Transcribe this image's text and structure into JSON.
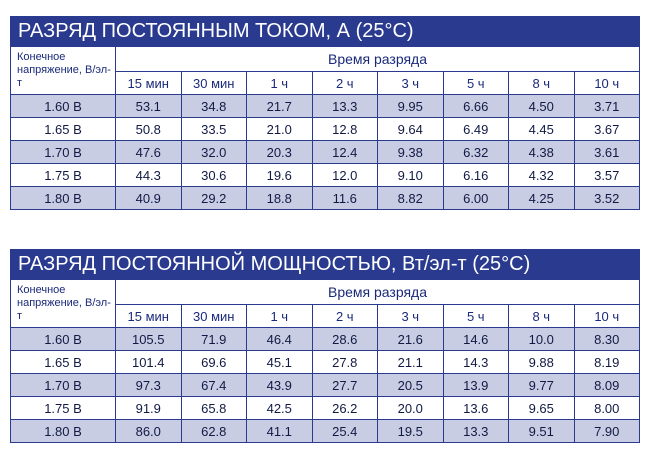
{
  "current_table": {
    "title": "РАЗРЯД ПОСТОЯННЫМ ТОКОМ, А (25°C)",
    "row_header": "Конечное напряжение, В/эл-т",
    "group_header": "Время разряда",
    "columns": [
      "15 мин",
      "30 мин",
      "1 ч",
      "2 ч",
      "3 ч",
      "5 ч",
      "8 ч",
      "10 ч"
    ],
    "rows": [
      {
        "voltage": "1.60 В",
        "values": [
          "53.1",
          "34.8",
          "21.7",
          "13.3",
          "9.95",
          "6.66",
          "4.50",
          "3.71"
        ]
      },
      {
        "voltage": "1.65 В",
        "values": [
          "50.8",
          "33.5",
          "21.0",
          "12.8",
          "9.64",
          "6.49",
          "4.45",
          "3.67"
        ]
      },
      {
        "voltage": "1.70 В",
        "values": [
          "47.6",
          "32.0",
          "20.3",
          "12.4",
          "9.38",
          "6.32",
          "4.38",
          "3.61"
        ]
      },
      {
        "voltage": "1.75 В",
        "values": [
          "44.3",
          "30.6",
          "19.6",
          "12.0",
          "9.10",
          "6.16",
          "4.32",
          "3.57"
        ]
      },
      {
        "voltage": "1.80 В",
        "values": [
          "40.9",
          "29.2",
          "18.8",
          "11.6",
          "8.82",
          "6.00",
          "4.25",
          "3.52"
        ]
      }
    ]
  },
  "power_table": {
    "title": "РАЗРЯД ПОСТОЯННОЙ МОЩНОСТЬЮ, Вт/эл-т (25°C)",
    "row_header": "Конечное напряжение, В/эл-т",
    "group_header": "Время разряда",
    "columns": [
      "15 мин",
      "30 мин",
      "1 ч",
      "2 ч",
      "3 ч",
      "5 ч",
      "8 ч",
      "10 ч"
    ],
    "rows": [
      {
        "voltage": "1.60 В",
        "values": [
          "105.5",
          "71.9",
          "46.4",
          "28.6",
          "21.6",
          "14.6",
          "10.0",
          "8.30"
        ]
      },
      {
        "voltage": "1.65 В",
        "values": [
          "101.4",
          "69.6",
          "45.1",
          "27.8",
          "21.1",
          "14.3",
          "9.88",
          "8.19"
        ]
      },
      {
        "voltage": "1.70 В",
        "values": [
          "97.3",
          "67.4",
          "43.9",
          "27.7",
          "20.5",
          "13.9",
          "9.77",
          "8.09"
        ]
      },
      {
        "voltage": "1.75 В",
        "values": [
          "91.9",
          "65.8",
          "42.5",
          "26.2",
          "20.0",
          "13.6",
          "9.65",
          "8.00"
        ]
      },
      {
        "voltage": "1.80 В",
        "values": [
          "86.0",
          "62.8",
          "41.1",
          "25.4",
          "19.5",
          "13.3",
          "9.51",
          "7.90"
        ]
      }
    ]
  },
  "colors": {
    "header_bg": "#2a3a8f",
    "stripe": "#c9cde3"
  }
}
